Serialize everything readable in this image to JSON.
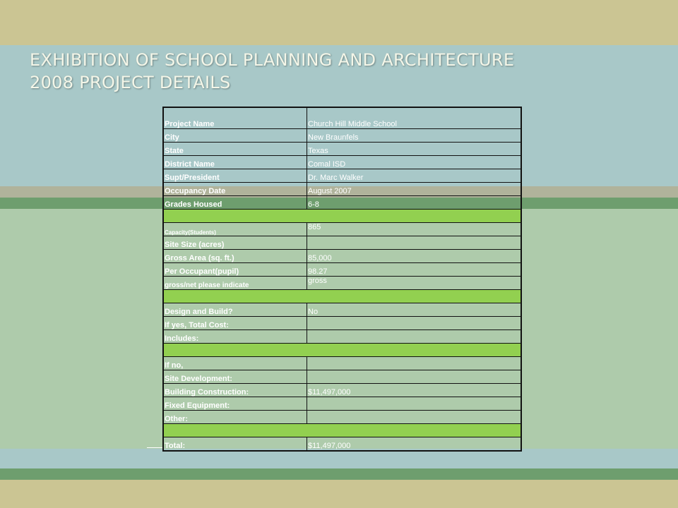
{
  "slide": {
    "title_line1": "EXHIBITION OF SCHOOL PLANNING AND ARCHITECTURE",
    "title_line2": "2008 PROJECT DETAILS"
  },
  "table": {
    "rows": [
      {
        "label": "Project Name",
        "value": "Church Hill Middle School"
      },
      {
        "label": "City",
        "value": "New Braunfels"
      },
      {
        "label": "State",
        "value": "Texas"
      },
      {
        "label": "District Name",
        "value": "Comal ISD"
      },
      {
        "label": "Supt/President",
        "value": "Dr. Marc Walker"
      },
      {
        "label": "Occupancy Date",
        "value": "August 2007"
      },
      {
        "label": "Grades Housed",
        "value": "6-8"
      },
      {
        "label": "Capacity(Students)",
        "value": "865"
      },
      {
        "label": "Site Size (acres)",
        "value": ""
      },
      {
        "label": "Gross Area (sq. ft.)",
        "value": "85,000"
      },
      {
        "label": "Per Occupant(pupil)",
        "value": "98.27"
      },
      {
        "label": "gross/net please indicate",
        "value": "gross"
      },
      {
        "label": "Design and Build?",
        "value": "No"
      },
      {
        "label": "If yes, Total Cost:",
        "value": ""
      },
      {
        "label": "Includes:",
        "value": ""
      },
      {
        "label": "If no,",
        "value": ""
      },
      {
        "label": "Site Development:",
        "value": ""
      },
      {
        "label": "Building Construction:",
        "value": "$11,497,000"
      },
      {
        "label": "Fixed Equipment:",
        "value": ""
      },
      {
        "label": "Other:",
        "value": ""
      },
      {
        "label": "Total:",
        "value": "$11,497,000"
      }
    ]
  },
  "colors": {
    "top_band": "#cbc593",
    "title_band": "#a8c8c8",
    "stripe_tan": "#b0b39b",
    "stripe_green": "#6e9e6e",
    "content_green": "#aecbab",
    "bottom_blue": "#a8c8c8",
    "bottom_green": "#6e9e6e",
    "spacer_row": "#92d050"
  }
}
